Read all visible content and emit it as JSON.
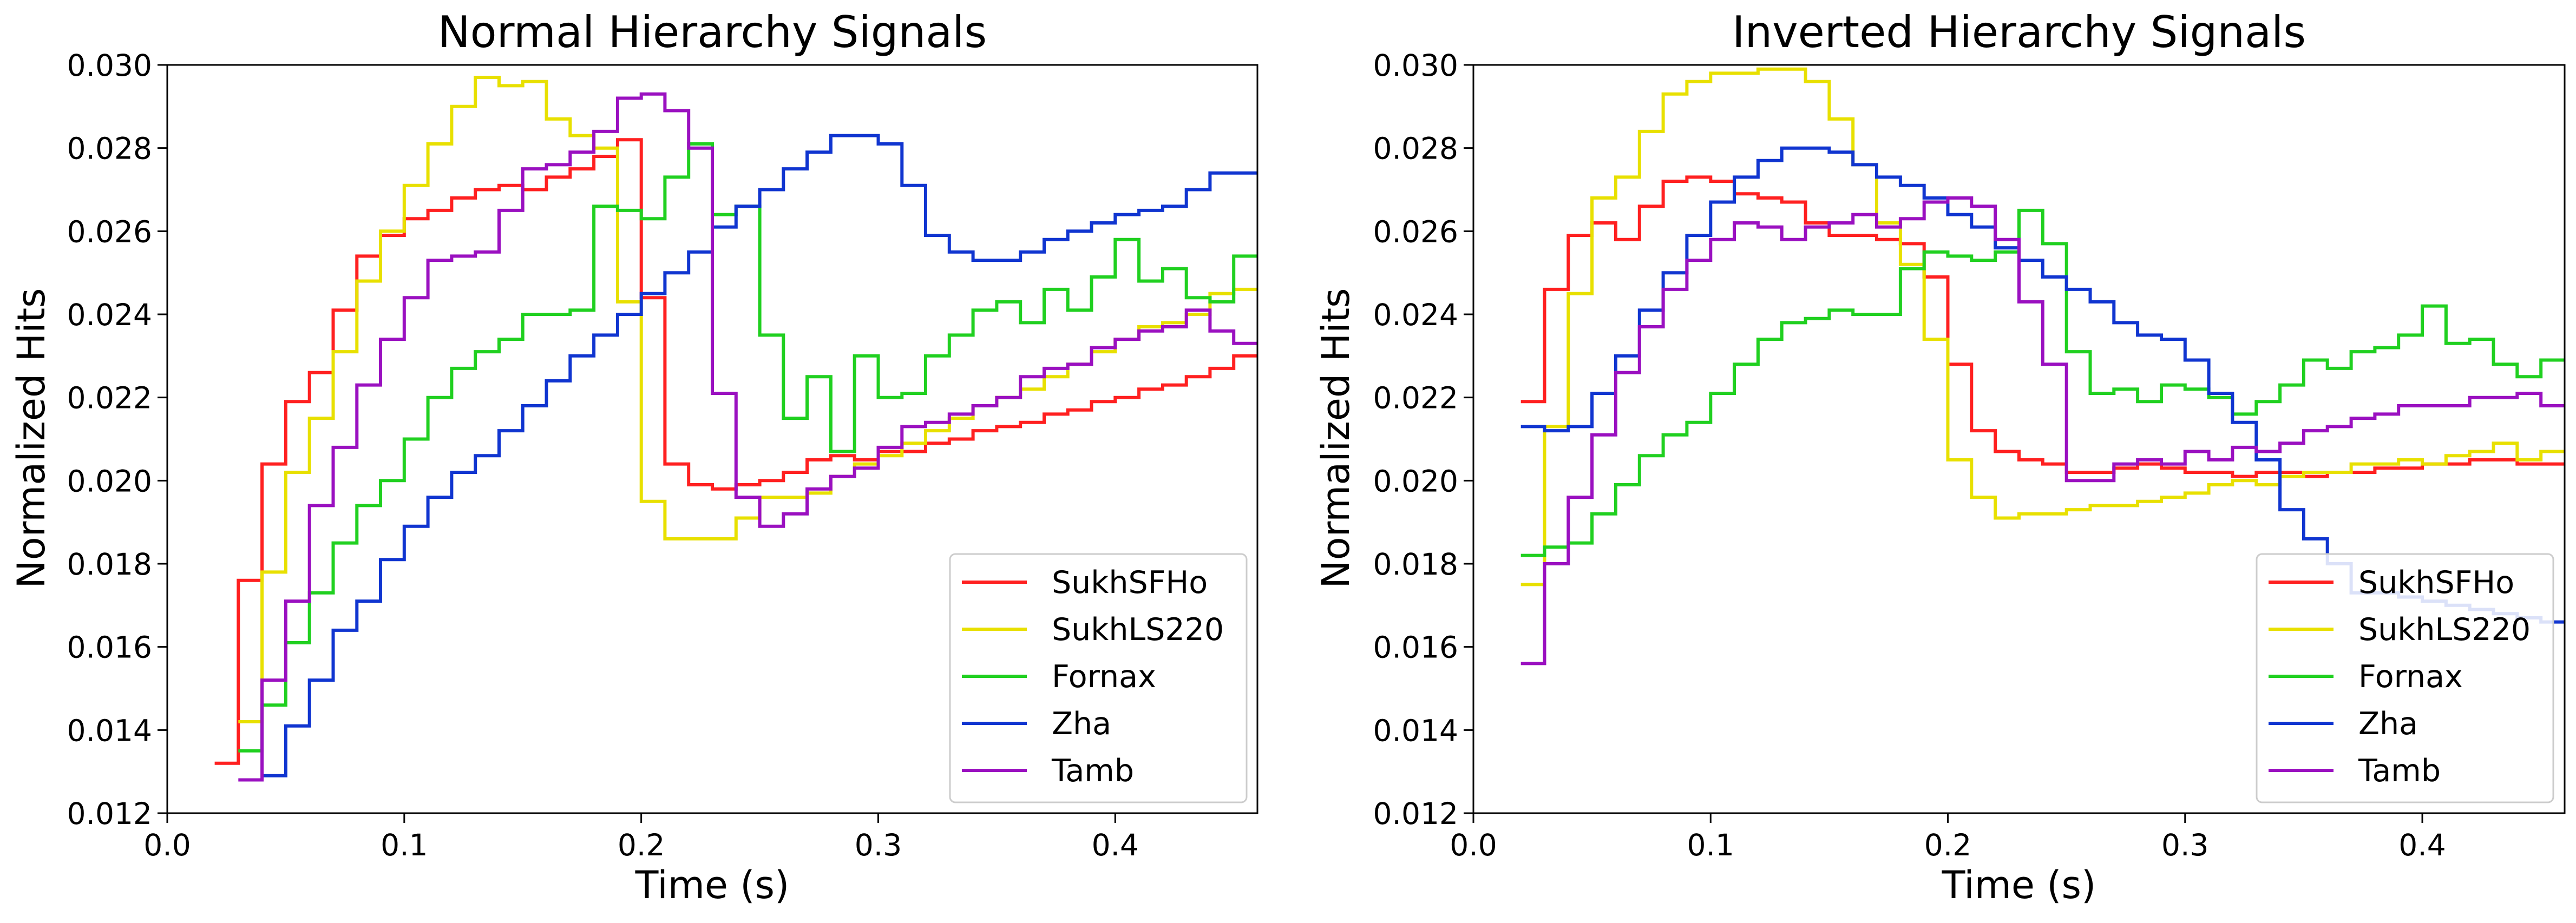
{
  "chart_data": [
    {
      "type": "line",
      "step": "post",
      "title": "Normal Hierarchy Signals",
      "xlabel": "Time (s)",
      "ylabel": "Normalized Hits",
      "xlim": [
        0.0,
        0.46
      ],
      "ylim": [
        0.012,
        0.03
      ],
      "xticks": [
        "0.0",
        "0.1",
        "0.2",
        "0.3",
        "0.4"
      ],
      "yticks": [
        "0.012",
        "0.014",
        "0.016",
        "0.018",
        "0.020",
        "0.022",
        "0.024",
        "0.026",
        "0.028",
        "0.030"
      ],
      "grid": false,
      "legend": "lower right",
      "x": [
        0.02,
        0.03,
        0.04,
        0.05,
        0.06,
        0.07,
        0.08,
        0.09,
        0.1,
        0.11,
        0.12,
        0.13,
        0.14,
        0.15,
        0.16,
        0.17,
        0.18,
        0.19,
        0.2,
        0.21,
        0.22,
        0.23,
        0.24,
        0.25,
        0.26,
        0.27,
        0.28,
        0.29,
        0.3,
        0.31,
        0.32,
        0.33,
        0.34,
        0.35,
        0.36,
        0.37,
        0.38,
        0.39,
        0.4,
        0.41,
        0.42,
        0.43,
        0.44,
        0.45
      ],
      "series": [
        {
          "name": "SukhSFHo",
          "color": "#ff2020",
          "values": [
            0.0132,
            0.0176,
            0.0204,
            0.0219,
            0.0226,
            0.0241,
            0.0254,
            0.0259,
            0.0263,
            0.0265,
            0.0268,
            0.027,
            0.0271,
            0.027,
            0.0273,
            0.0275,
            0.0278,
            0.0282,
            0.0244,
            0.0204,
            0.0199,
            0.0198,
            0.0199,
            0.02,
            0.0202,
            0.0205,
            0.0206,
            0.0205,
            0.0207,
            0.0207,
            0.0209,
            0.021,
            0.0212,
            0.0213,
            0.0214,
            0.0216,
            0.0217,
            0.0219,
            0.022,
            0.0222,
            0.0223,
            0.0225,
            0.0227,
            0.023
          ]
        },
        {
          "name": "SukhLS220",
          "color": "#e8e000",
          "values": [
            null,
            0.0142,
            0.0178,
            0.0202,
            0.0215,
            0.0231,
            0.0248,
            0.026,
            0.0271,
            0.0281,
            0.029,
            0.0297,
            0.0295,
            0.0296,
            0.0287,
            0.0283,
            0.028,
            0.0243,
            0.0195,
            0.0186,
            0.0186,
            0.0186,
            0.0191,
            0.0196,
            0.0196,
            0.0197,
            0.0201,
            0.0204,
            0.0206,
            0.0209,
            0.0212,
            0.0215,
            0.0218,
            0.022,
            0.0222,
            0.0225,
            0.0228,
            0.0231,
            0.0234,
            0.0237,
            0.0238,
            0.024,
            0.0245,
            0.0246
          ]
        },
        {
          "name": "Fornax",
          "color": "#20d020",
          "values": [
            null,
            0.0135,
            0.0146,
            0.0161,
            0.0173,
            0.0185,
            0.0194,
            0.02,
            0.021,
            0.022,
            0.0227,
            0.0231,
            0.0234,
            0.024,
            0.024,
            0.0241,
            0.0266,
            0.0265,
            0.0263,
            0.0273,
            0.0281,
            0.0264,
            0.0266,
            0.0235,
            0.0215,
            0.0225,
            0.0207,
            0.023,
            0.022,
            0.0221,
            0.023,
            0.0235,
            0.0241,
            0.0243,
            0.0238,
            0.0246,
            0.0241,
            0.0249,
            0.0258,
            0.0248,
            0.0251,
            0.0244,
            0.0243,
            0.0254
          ]
        },
        {
          "name": "Zha",
          "color": "#1035d0",
          "values": [
            null,
            null,
            0.0129,
            0.0141,
            0.0152,
            0.0164,
            0.0171,
            0.0181,
            0.0189,
            0.0196,
            0.0202,
            0.0206,
            0.0212,
            0.0218,
            0.0224,
            0.023,
            0.0235,
            0.024,
            0.0245,
            0.025,
            0.0255,
            0.0261,
            0.0266,
            0.027,
            0.0275,
            0.0279,
            0.0283,
            0.0283,
            0.0281,
            0.0271,
            0.0259,
            0.0255,
            0.0253,
            0.0253,
            0.0255,
            0.0258,
            0.026,
            0.0262,
            0.0264,
            0.0265,
            0.0266,
            0.027,
            0.0274,
            0.0274
          ]
        },
        {
          "name": "Tamb",
          "color": "#9a10c0",
          "values": [
            null,
            0.0128,
            0.0152,
            0.0171,
            0.0194,
            0.0208,
            0.0223,
            0.0234,
            0.0244,
            0.0253,
            0.0254,
            0.0255,
            0.0265,
            0.0275,
            0.0276,
            0.0279,
            0.0284,
            0.0292,
            0.0293,
            0.0289,
            0.028,
            0.0221,
            0.0196,
            0.0189,
            0.0192,
            0.0198,
            0.0201,
            0.0203,
            0.0208,
            0.0213,
            0.0214,
            0.0216,
            0.0218,
            0.022,
            0.0225,
            0.0227,
            0.0228,
            0.0232,
            0.0234,
            0.0236,
            0.0237,
            0.0241,
            0.0236,
            0.0233
          ]
        }
      ]
    },
    {
      "type": "line",
      "step": "post",
      "title": "Inverted Hierarchy Signals",
      "xlabel": "Time (s)",
      "ylabel": "Normalized Hits",
      "xlim": [
        0.0,
        0.46
      ],
      "ylim": [
        0.012,
        0.03
      ],
      "xticks": [
        "0.0",
        "0.1",
        "0.2",
        "0.3",
        "0.4"
      ],
      "yticks": [
        "0.012",
        "0.014",
        "0.016",
        "0.018",
        "0.020",
        "0.022",
        "0.024",
        "0.026",
        "0.028",
        "0.030"
      ],
      "grid": false,
      "legend": "lower right",
      "x": [
        0.02,
        0.03,
        0.04,
        0.05,
        0.06,
        0.07,
        0.08,
        0.09,
        0.1,
        0.11,
        0.12,
        0.13,
        0.14,
        0.15,
        0.16,
        0.17,
        0.18,
        0.19,
        0.2,
        0.21,
        0.22,
        0.23,
        0.24,
        0.25,
        0.26,
        0.27,
        0.28,
        0.29,
        0.3,
        0.31,
        0.32,
        0.33,
        0.34,
        0.35,
        0.36,
        0.37,
        0.38,
        0.39,
        0.4,
        0.41,
        0.42,
        0.43,
        0.44,
        0.45
      ],
      "series": [
        {
          "name": "SukhSFHo",
          "color": "#ff2020",
          "values": [
            0.0219,
            0.0246,
            0.0259,
            0.0262,
            0.0258,
            0.0266,
            0.0272,
            0.0273,
            0.0272,
            0.0269,
            0.0268,
            0.0267,
            0.0262,
            0.0259,
            0.0259,
            0.0258,
            0.0257,
            0.0249,
            0.0228,
            0.0212,
            0.0207,
            0.0205,
            0.0204,
            0.0202,
            0.0202,
            0.0203,
            0.0204,
            0.0203,
            0.0202,
            0.0202,
            0.0201,
            0.0202,
            0.0202,
            0.0201,
            0.0202,
            0.0202,
            0.0203,
            0.0203,
            0.0204,
            0.0204,
            0.0205,
            0.0205,
            0.0204,
            0.0204
          ]
        },
        {
          "name": "SukhLS220",
          "color": "#e8e000",
          "values": [
            0.0175,
            0.0213,
            0.0245,
            0.0268,
            0.0273,
            0.0284,
            0.0293,
            0.0296,
            0.0298,
            0.0298,
            0.0299,
            0.0299,
            0.0296,
            0.0287,
            0.0276,
            0.0262,
            0.0252,
            0.0234,
            0.0205,
            0.0196,
            0.0191,
            0.0192,
            0.0192,
            0.0193,
            0.0194,
            0.0194,
            0.0195,
            0.0196,
            0.0197,
            0.0199,
            0.02,
            0.0199,
            0.0201,
            0.0202,
            0.0202,
            0.0204,
            0.0204,
            0.0205,
            0.0204,
            0.0206,
            0.0207,
            0.0209,
            0.0205,
            0.0207
          ]
        },
        {
          "name": "Fornax",
          "color": "#20d020",
          "values": [
            0.0182,
            0.0184,
            0.0185,
            0.0192,
            0.0199,
            0.0206,
            0.0211,
            0.0214,
            0.0221,
            0.0228,
            0.0234,
            0.0238,
            0.0239,
            0.0241,
            0.024,
            0.024,
            0.0251,
            0.0255,
            0.0254,
            0.0253,
            0.0255,
            0.0265,
            0.0257,
            0.0231,
            0.0221,
            0.0222,
            0.0219,
            0.0223,
            0.0222,
            0.022,
            0.0216,
            0.0219,
            0.0223,
            0.0229,
            0.0227,
            0.0231,
            0.0232,
            0.0235,
            0.0242,
            0.0233,
            0.0234,
            0.0228,
            0.0225,
            0.0229
          ]
        },
        {
          "name": "Zha",
          "color": "#1035d0",
          "values": [
            0.0213,
            0.0212,
            0.0213,
            0.0221,
            0.023,
            0.0241,
            0.025,
            0.0259,
            0.0267,
            0.0273,
            0.0277,
            0.028,
            0.028,
            0.0279,
            0.0276,
            0.0273,
            0.0271,
            0.0268,
            0.0264,
            0.0261,
            0.0256,
            0.0253,
            0.0249,
            0.0246,
            0.0243,
            0.0238,
            0.0235,
            0.0234,
            0.0229,
            0.0221,
            0.0214,
            0.0205,
            0.0193,
            0.0186,
            0.018,
            0.0173,
            0.0173,
            0.0172,
            0.0171,
            0.017,
            0.0169,
            0.0168,
            0.0167,
            0.0166
          ]
        },
        {
          "name": "Tamb",
          "color": "#9a10c0",
          "values": [
            0.0156,
            0.018,
            0.0196,
            0.0211,
            0.0226,
            0.0237,
            0.0246,
            0.0253,
            0.0258,
            0.0262,
            0.0261,
            0.0258,
            0.0261,
            0.0262,
            0.0264,
            0.0261,
            0.0263,
            0.0267,
            0.0268,
            0.0266,
            0.0258,
            0.0243,
            0.0228,
            0.02,
            0.02,
            0.0204,
            0.0205,
            0.0204,
            0.0207,
            0.0205,
            0.0208,
            0.0207,
            0.0209,
            0.0212,
            0.0213,
            0.0215,
            0.0216,
            0.0218,
            0.0218,
            0.0218,
            0.022,
            0.022,
            0.0221,
            0.0218
          ]
        }
      ]
    }
  ]
}
